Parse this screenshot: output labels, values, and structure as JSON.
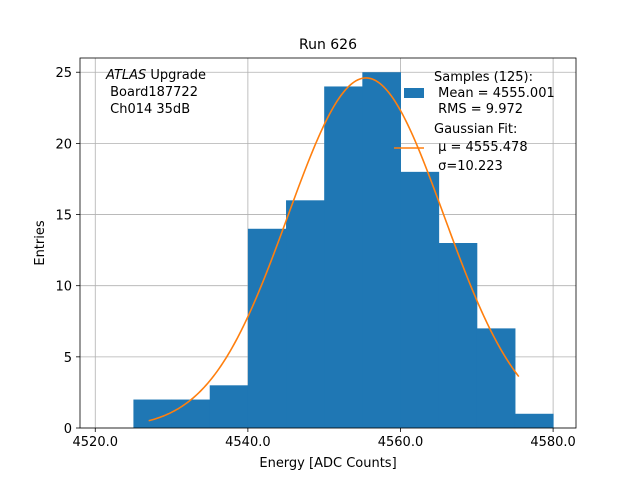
{
  "chart_data": {
    "type": "bar",
    "title": "Run 626",
    "xlabel": "Energy [ADC Counts]",
    "ylabel": "Entries",
    "xlim": [
      4518,
      4583
    ],
    "ylim": [
      0,
      26
    ],
    "grid": true,
    "x_ticks": [
      {
        "value": 4520,
        "label": "4520.0"
      },
      {
        "value": 4540,
        "label": "4540.0"
      },
      {
        "value": 4560,
        "label": "4560.0"
      },
      {
        "value": 4580,
        "label": "4580.0"
      }
    ],
    "y_ticks": [
      {
        "value": 0,
        "label": "0"
      },
      {
        "value": 5,
        "label": "5"
      },
      {
        "value": 10,
        "label": "10"
      },
      {
        "value": 15,
        "label": "15"
      },
      {
        "value": 20,
        "label": "20"
      },
      {
        "value": 25,
        "label": "25"
      }
    ],
    "histogram": {
      "color": "#1f77b4",
      "bin_edges": [
        4525,
        4530,
        4535,
        4540,
        4545,
        4550,
        4555,
        4560,
        4565,
        4570,
        4575,
        4580
      ],
      "counts": [
        2,
        2,
        3,
        14,
        16,
        24,
        25,
        18,
        13,
        7,
        1
      ]
    },
    "fit": {
      "color": "#ff7f0e",
      "mu": 4555.478,
      "sigma": 10.223,
      "amplitude": 24.6,
      "x_range": [
        4527,
        4575.5
      ]
    },
    "annotation": {
      "italic": "ATLAS",
      "line1_rest": " Upgrade",
      "line2": " Board187722",
      "line3": " Ch014 35dB"
    },
    "legend": {
      "placement": "top-right",
      "samples_lines": [
        "Samples (125):",
        " Mean = 4555.001",
        " RMS = 9.972"
      ],
      "fit_lines": [
        "Gaussian Fit:",
        " μ = 4555.478",
        " σ=10.223"
      ]
    }
  }
}
